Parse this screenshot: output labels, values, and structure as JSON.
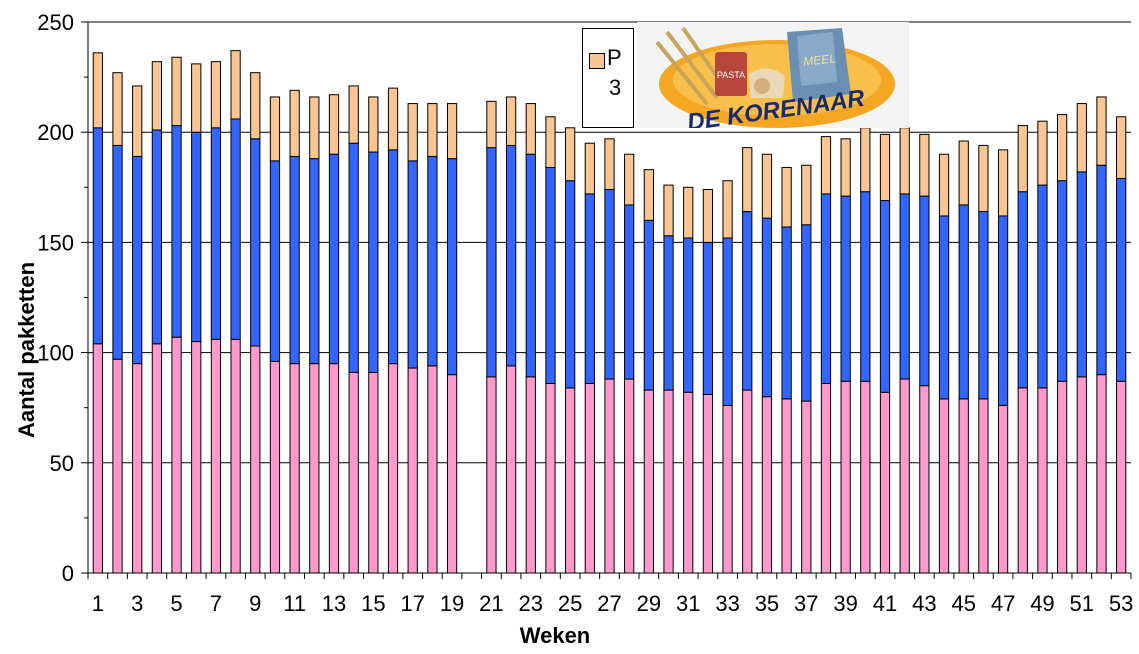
{
  "chart_data": {
    "type": "bar",
    "stacked": true,
    "xlabel": "Weken",
    "ylabel": "Aantal pakketten",
    "ylim": [
      0,
      250
    ],
    "yticks": [
      0,
      50,
      100,
      150,
      200,
      250
    ],
    "xtick_labels": [
      "1",
      "3",
      "5",
      "7",
      "9",
      "11",
      "13",
      "15",
      "17",
      "19",
      "21",
      "23",
      "25",
      "27",
      "29",
      "31",
      "33",
      "35",
      "37",
      "39",
      "41",
      "43",
      "45",
      "47",
      "49",
      "51",
      "53"
    ],
    "categories": [
      "1",
      "2",
      "3",
      "4",
      "5",
      "6",
      "7",
      "8",
      "9",
      "10",
      "11",
      "12",
      "13",
      "14",
      "15",
      "16",
      "17",
      "18",
      "19",
      "20",
      "21",
      "22",
      "23",
      "24",
      "25",
      "26",
      "27",
      "28",
      "29",
      "30",
      "31",
      "32",
      "33",
      "34",
      "35",
      "36",
      "37",
      "38",
      "39",
      "40",
      "41",
      "42",
      "43",
      "44",
      "45",
      "46",
      "47",
      "48",
      "49",
      "50",
      "51",
      "52",
      "53"
    ],
    "grid": "horizontal",
    "colors": {
      "pink": "#ff99cc",
      "blue": "#3366ff",
      "orange": "#f9c592"
    },
    "series": [
      {
        "values": [
          104,
          97,
          95,
          104,
          107,
          105,
          106,
          106,
          103,
          96,
          95,
          95,
          95,
          91,
          91,
          95,
          93,
          94,
          90,
          null,
          89,
          94,
          89,
          86,
          84,
          86,
          88,
          88,
          83,
          83,
          82,
          81,
          76,
          83,
          80,
          79,
          78,
          86,
          87,
          87,
          82,
          88,
          85,
          79,
          79,
          79,
          76,
          84,
          84,
          87,
          89,
          90,
          87
        ]
      },
      {
        "values": [
          98,
          97,
          94,
          97,
          96,
          95,
          96,
          100,
          94,
          91,
          94,
          93,
          95,
          104,
          100,
          97,
          94,
          95,
          98,
          null,
          104,
          100,
          101,
          98,
          94,
          86,
          86,
          79,
          77,
          70,
          70,
          69,
          76,
          81,
          81,
          78,
          80,
          86,
          84,
          86,
          87,
          84,
          86,
          83,
          88,
          85,
          86,
          89,
          92,
          91,
          93,
          95,
          92
        ]
      },
      {
        "name": "P 3",
        "values": [
          34,
          33,
          32,
          31,
          31,
          31,
          30,
          31,
          30,
          29,
          30,
          28,
          27,
          26,
          25,
          28,
          26,
          24,
          25,
          null,
          21,
          22,
          23,
          23,
          24,
          23,
          23,
          23,
          23,
          23,
          23,
          24,
          26,
          29,
          29,
          27,
          27,
          26,
          26,
          29,
          30,
          30,
          28,
          28,
          29,
          30,
          30,
          30,
          29,
          30,
          31,
          31,
          28
        ]
      }
    ]
  },
  "legend": {
    "line1": "P",
    "line2": "3"
  },
  "logo": {
    "text": "DE KORENAAR",
    "bag_text": "MEEL",
    "pack_text": "PASTA"
  }
}
